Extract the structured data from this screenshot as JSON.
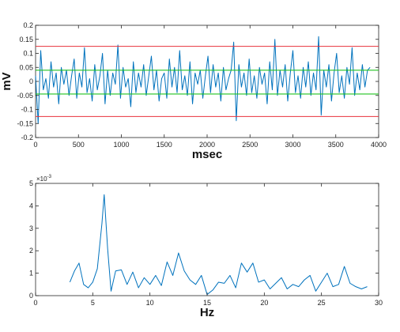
{
  "chart_data": [
    {
      "type": "line",
      "xlabel": "msec",
      "ylabel": "mV",
      "xlim": [
        0,
        4000
      ],
      "ylim": [
        -0.2,
        0.2
      ],
      "xticks": [
        "0",
        "500",
        "1000",
        "1500",
        "2000",
        "2500",
        "3000",
        "3500",
        "4000"
      ],
      "yticks": [
        "-0.2",
        "-0.15",
        "-0.1",
        "-0.05",
        "0",
        "0.05",
        "0.1",
        "0.15",
        "0.2"
      ],
      "grid": false,
      "series": [
        {
          "color": "#0072bd",
          "x": [
            0,
            30,
            60,
            90,
            120,
            150,
            180,
            210,
            240,
            270,
            300,
            330,
            360,
            390,
            420,
            450,
            480,
            510,
            540,
            570,
            600,
            630,
            660,
            690,
            720,
            750,
            780,
            810,
            840,
            870,
            900,
            930,
            960,
            990,
            1020,
            1050,
            1080,
            1110,
            1140,
            1170,
            1200,
            1230,
            1260,
            1290,
            1320,
            1350,
            1380,
            1410,
            1440,
            1470,
            1500,
            1530,
            1560,
            1590,
            1620,
            1650,
            1680,
            1710,
            1740,
            1770,
            1800,
            1830,
            1860,
            1890,
            1920,
            1950,
            1980,
            2010,
            2040,
            2070,
            2100,
            2130,
            2160,
            2190,
            2220,
            2250,
            2280,
            2310,
            2340,
            2370,
            2400,
            2430,
            2460,
            2490,
            2520,
            2550,
            2580,
            2610,
            2640,
            2670,
            2700,
            2730,
            2760,
            2790,
            2820,
            2850,
            2880,
            2910,
            2940,
            2970,
            3000,
            3030,
            3060,
            3090,
            3120,
            3150,
            3180,
            3210,
            3240,
            3270,
            3300,
            3330,
            3360,
            3390,
            3420,
            3450,
            3480,
            3510,
            3540,
            3570,
            3600,
            3630,
            3660,
            3690,
            3720,
            3750,
            3780,
            3810,
            3840,
            3870,
            3900
          ],
          "values": [
            0.02,
            -0.15,
            0.11,
            -0.03,
            0.01,
            -0.06,
            0.07,
            -0.02,
            0.03,
            -0.08,
            0.05,
            -0.01,
            0.04,
            -0.05,
            0.02,
            0.08,
            -0.06,
            0.03,
            -0.02,
            0.12,
            -0.04,
            0.01,
            -0.07,
            0.06,
            -0.03,
            0.02,
            0.1,
            -0.08,
            0.04,
            -0.05,
            0.03,
            -0.01,
            0.13,
            -0.06,
            0.05,
            -0.02,
            0.01,
            -0.09,
            0.07,
            -0.04,
            0.03,
            -0.02,
            0.06,
            -0.05,
            0.02,
            0.09,
            -0.03,
            0.04,
            -0.07,
            0.01,
            0.03,
            -0.06,
            0.08,
            -0.02,
            0.05,
            -0.04,
            0.11,
            -0.03,
            0.02,
            -0.05,
            0.07,
            -0.08,
            0.03,
            -0.01,
            0.04,
            -0.06,
            0.02,
            0.09,
            -0.04,
            0.06,
            -0.02,
            0.03,
            -0.07,
            0.05,
            -0.03,
            0.01,
            0.04,
            0.14,
            -0.14,
            0.06,
            -0.02,
            0.03,
            -0.05,
            0.08,
            -0.04,
            0.02,
            -0.06,
            0.05,
            -0.01,
            0.03,
            -0.08,
            0.07,
            -0.03,
            0.15,
            -0.05,
            0.04,
            -0.02,
            0.06,
            -0.07,
            0.03,
            0.11,
            -0.04,
            0.02,
            -0.06,
            0.05,
            -0.02,
            0.07,
            -0.05,
            0.03,
            -0.03,
            0.16,
            -0.12,
            0.04,
            -0.02,
            0.06,
            -0.07,
            0.03,
            0.1,
            -0.04,
            0.02,
            -0.06,
            0.05,
            -0.01,
            0.12,
            -0.05,
            0.03,
            -0.03,
            0.06,
            -0.02,
            0.04,
            0.05
          ]
        },
        {
          "color": "#e8323c",
          "x": [
            0,
            4000
          ],
          "values": [
            0.125,
            0.125
          ]
        },
        {
          "color": "#e8323c",
          "x": [
            0,
            4000
          ],
          "values": [
            -0.125,
            -0.125
          ]
        },
        {
          "color": "#22c322",
          "x": [
            0,
            4000
          ],
          "values": [
            0.04,
            0.04
          ]
        },
        {
          "color": "#22c322",
          "x": [
            0,
            4000
          ],
          "values": [
            -0.045,
            -0.045
          ]
        }
      ]
    },
    {
      "type": "line",
      "xlabel": "Hz",
      "ylabel": "",
      "xlim": [
        0,
        30
      ],
      "ylim": [
        0,
        5
      ],
      "xticks": [
        "0",
        "5",
        "10",
        "15",
        "20",
        "25",
        "30"
      ],
      "yticks": [
        "0",
        "1",
        "2",
        "3",
        "4",
        "5"
      ],
      "y_multiplier": "×10",
      "y_multiplier_exp": "-3",
      "grid": false,
      "series": [
        {
          "color": "#0072bd",
          "x": [
            3.0,
            3.4,
            3.8,
            4.2,
            4.6,
            5.0,
            5.4,
            5.8,
            6.0,
            6.3,
            6.6,
            7.0,
            7.5,
            8.0,
            8.5,
            9.0,
            9.5,
            10.0,
            10.5,
            11.0,
            11.5,
            12.0,
            12.5,
            13.0,
            13.5,
            14.0,
            14.5,
            15.0,
            15.5,
            16.0,
            16.5,
            17.0,
            17.5,
            18.0,
            18.5,
            19.0,
            19.5,
            20.0,
            20.5,
            21.0,
            21.5,
            22.0,
            22.5,
            23.0,
            23.5,
            24.0,
            24.5,
            25.0,
            25.5,
            26.0,
            26.5,
            27.0,
            27.5,
            28.0,
            28.5,
            29.0
          ],
          "values": [
            0.6,
            1.1,
            1.45,
            0.5,
            0.35,
            0.6,
            1.2,
            3.2,
            4.5,
            2.1,
            0.2,
            1.1,
            1.15,
            0.5,
            1.05,
            0.35,
            0.8,
            0.5,
            0.9,
            0.45,
            1.5,
            0.9,
            1.9,
            1.1,
            0.7,
            0.5,
            0.9,
            0.05,
            0.25,
            0.6,
            0.55,
            0.9,
            0.35,
            1.45,
            1.05,
            1.45,
            0.6,
            0.7,
            0.3,
            0.55,
            0.8,
            0.3,
            0.5,
            0.4,
            0.7,
            0.9,
            0.2,
            0.6,
            1.0,
            0.4,
            0.5,
            1.3,
            0.55,
            0.4,
            0.3,
            0.4
          ]
        }
      ]
    }
  ]
}
